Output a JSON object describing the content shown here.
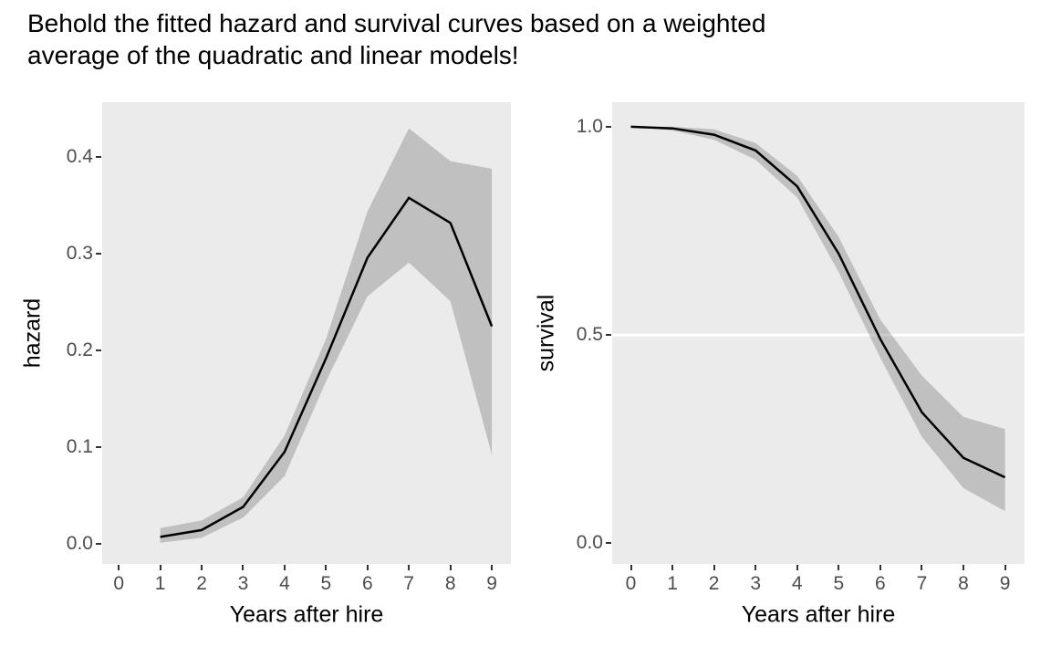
{
  "title": {
    "text": "Behold the fitted hazard and survival curves based on a weighted\naverage of the quadratic and linear models!"
  },
  "colors": {
    "panel_bg": "#EBEBEB",
    "ribbon": "rgba(128,128,128,0.40)",
    "ribbon_flat": "#C0C0C0",
    "line": "#000000",
    "reference_line": "#FFFFFF",
    "tick": "#333333",
    "tick_label": "#4D4D4D",
    "axis_title": "#000000",
    "title": "#000000",
    "background": "#FFFFFF"
  },
  "chart_data": [
    {
      "type": "line",
      "name": "hazard",
      "title": "",
      "xlabel": "Years after hire",
      "ylabel": "hazard",
      "x": [
        1,
        2,
        3,
        4,
        5,
        6,
        7,
        8,
        9
      ],
      "series": [
        {
          "name": "fitted hazard",
          "values": [
            0.007,
            0.014,
            0.038,
            0.095,
            0.192,
            0.296,
            0.358,
            0.332,
            0.225
          ]
        },
        {
          "name": "ribbon lower",
          "values": [
            0.001,
            0.006,
            0.027,
            0.07,
            0.168,
            0.256,
            0.291,
            0.251,
            0.092
          ]
        },
        {
          "name": "ribbon upper",
          "values": [
            0.016,
            0.024,
            0.048,
            0.112,
            0.212,
            0.344,
            0.43,
            0.396,
            0.388
          ]
        }
      ],
      "line": [
        0.007,
        0.014,
        0.038,
        0.095,
        0.192,
        0.296,
        0.358,
        0.332,
        0.225
      ],
      "ribbon_lower": [
        0.001,
        0.006,
        0.027,
        0.07,
        0.168,
        0.256,
        0.291,
        0.251,
        0.092
      ],
      "ribbon_upper": [
        0.016,
        0.024,
        0.048,
        0.112,
        0.212,
        0.344,
        0.43,
        0.396,
        0.388
      ],
      "x_ticks": [
        0,
        1,
        2,
        3,
        4,
        5,
        6,
        7,
        8,
        9
      ],
      "x_tick_labels": [
        "0",
        "1",
        "2",
        "3",
        "4",
        "5",
        "6",
        "7",
        "8",
        "9"
      ],
      "y_ticks": [
        0.0,
        0.1,
        0.2,
        0.3,
        0.4
      ],
      "y_tick_labels": [
        "0.0",
        "0.1",
        "0.2",
        "0.3",
        "0.4"
      ],
      "xlim": [
        -0.4,
        9.46
      ],
      "ylim": [
        -0.021,
        0.457
      ],
      "grid": false,
      "legend": "none",
      "ref_line": null
    },
    {
      "type": "line",
      "name": "survival",
      "title": "",
      "xlabel": "Years after hire",
      "ylabel": "survival",
      "x": [
        0,
        1,
        2,
        3,
        4,
        5,
        6,
        7,
        8,
        9
      ],
      "series": [
        {
          "name": "fitted survival",
          "values": [
            1.0,
            0.996,
            0.981,
            0.943,
            0.857,
            0.695,
            0.49,
            0.314,
            0.205,
            0.158
          ]
        },
        {
          "name": "ribbon lower",
          "values": [
            1.0,
            0.991,
            0.969,
            0.921,
            0.83,
            0.651,
            0.445,
            0.255,
            0.132,
            0.077
          ]
        },
        {
          "name": "ribbon upper",
          "values": [
            1.0,
            1.0,
            0.994,
            0.961,
            0.882,
            0.735,
            0.537,
            0.402,
            0.303,
            0.274
          ]
        }
      ],
      "line": [
        1.0,
        0.996,
        0.981,
        0.943,
        0.857,
        0.695,
        0.49,
        0.314,
        0.205,
        0.158
      ],
      "ribbon_lower": [
        1.0,
        0.991,
        0.969,
        0.921,
        0.83,
        0.651,
        0.445,
        0.255,
        0.132,
        0.077
      ],
      "ribbon_upper": [
        1.0,
        1.0,
        0.994,
        0.961,
        0.882,
        0.735,
        0.537,
        0.402,
        0.303,
        0.274
      ],
      "x_ticks": [
        0,
        1,
        2,
        3,
        4,
        5,
        6,
        7,
        8,
        9
      ],
      "x_tick_labels": [
        "0",
        "1",
        "2",
        "3",
        "4",
        "5",
        "6",
        "7",
        "8",
        "9"
      ],
      "y_ticks": [
        0.0,
        0.5,
        1.0
      ],
      "y_tick_labels": [
        "0.0",
        "0.5",
        "1.0"
      ],
      "xlim": [
        -0.45,
        9.47
      ],
      "ylim": [
        -0.05,
        1.059
      ],
      "grid": false,
      "legend": "none",
      "ref_line": 0.5
    }
  ]
}
